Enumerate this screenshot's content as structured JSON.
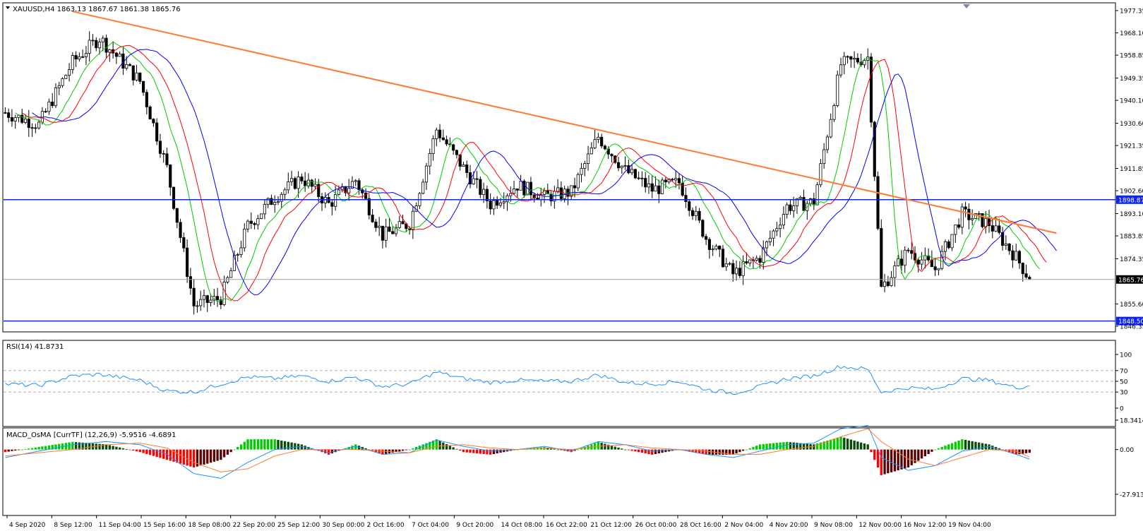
{
  "chart_data": [
    {
      "type": "candlestick",
      "title": "XAUUSD,H4  1863.13 1867.67 1861.38 1865.76",
      "ylim": [
        1846.35,
        1977.35
      ],
      "y_ticks": [
        "1977.35",
        "1968.10",
        "1958.85",
        "1949.35",
        "1940.10",
        "1930.60",
        "1921.35",
        "1911.85",
        "1902.60",
        "1893.10",
        "1883.85",
        "1874.35",
        "1855.60",
        "1846.35"
      ],
      "horizontal_lines": [
        {
          "value": 1898.87,
          "label": "1898.87",
          "color": "#0a23ff"
        },
        {
          "value": 1848.5,
          "label": "1848.50",
          "color": "#0a23ff"
        }
      ],
      "current_price": {
        "value": 1865.76,
        "label": "1865.76"
      },
      "trendline": {
        "color": "#ff7a30",
        "start": {
          "x": "9 Sep 2020",
          "y": 1977.0
        },
        "end": {
          "x": "20 Nov 2020",
          "y": 1885.0
        }
      },
      "moving_average_colors": {
        "fast": "#00cc00",
        "medium": "#ff0000",
        "slow": "#0000ff"
      },
      "close_path": [
        [
          0,
          1935
        ],
        [
          10,
          1930
        ],
        [
          20,
          1956
        ],
        [
          28,
          1966
        ],
        [
          40,
          1948
        ],
        [
          48,
          1912
        ],
        [
          56,
          1855
        ],
        [
          64,
          1858
        ],
        [
          72,
          1888
        ],
        [
          80,
          1900
        ],
        [
          88,
          1908
        ],
        [
          96,
          1897
        ],
        [
          104,
          1907
        ],
        [
          112,
          1884
        ],
        [
          120,
          1889
        ],
        [
          128,
          1928
        ],
        [
          136,
          1912
        ],
        [
          144,
          1897
        ],
        [
          152,
          1905
        ],
        [
          160,
          1900
        ],
        [
          168,
          1902
        ],
        [
          176,
          1925
        ],
        [
          184,
          1911
        ],
        [
          192,
          1903
        ],
        [
          200,
          1906
        ],
        [
          208,
          1883
        ],
        [
          216,
          1868
        ],
        [
          224,
          1875
        ],
        [
          232,
          1896
        ],
        [
          240,
          1898
        ],
        [
          248,
          1955
        ],
        [
          256,
          1958
        ],
        [
          260,
          1862
        ],
        [
          268,
          1878
        ],
        [
          276,
          1870
        ],
        [
          284,
          1893
        ],
        [
          292,
          1889
        ],
        [
          300,
          1875
        ],
        [
          304,
          1866
        ]
      ],
      "x_labels": [
        "4 Sep 2020",
        "8 Sep 12:00",
        "11 Sep 04:00",
        "15 Sep 16:00",
        "18 Sep 08:00",
        "22 Sep 20:00",
        "25 Sep 12:00",
        "30 Sep 00:00",
        "2 Oct 16:00",
        "7 Oct 04:00",
        "9 Oct 20:00",
        "14 Oct 08:00",
        "16 Oct 22:00",
        "21 Oct 12:00",
        "26 Oct 00:00",
        "28 Oct 16:00",
        "2 Nov 04:00",
        "4 Nov 20:00",
        "9 Nov 08:00",
        "12 Nov 00:00",
        "16 Nov 12:00",
        "19 Nov 04:00"
      ]
    },
    {
      "type": "line",
      "title": "RSI(14) 41.8731",
      "ylim": [
        0,
        100
      ],
      "y_ticks": [
        "100",
        "70",
        "50",
        "30",
        "0"
      ],
      "levels": [
        70,
        50,
        30
      ],
      "color": "#1e90ff",
      "path": [
        [
          0,
          45
        ],
        [
          10,
          42
        ],
        [
          20,
          60
        ],
        [
          28,
          63
        ],
        [
          40,
          52
        ],
        [
          48,
          32
        ],
        [
          56,
          30
        ],
        [
          64,
          45
        ],
        [
          72,
          58
        ],
        [
          80,
          55
        ],
        [
          88,
          60
        ],
        [
          96,
          50
        ],
        [
          104,
          58
        ],
        [
          112,
          40
        ],
        [
          120,
          45
        ],
        [
          128,
          67
        ],
        [
          136,
          55
        ],
        [
          144,
          48
        ],
        [
          152,
          52
        ],
        [
          160,
          50
        ],
        [
          168,
          50
        ],
        [
          176,
          62
        ],
        [
          184,
          48
        ],
        [
          192,
          45
        ],
        [
          200,
          50
        ],
        [
          208,
          35
        ],
        [
          216,
          28
        ],
        [
          224,
          40
        ],
        [
          232,
          55
        ],
        [
          240,
          60
        ],
        [
          248,
          78
        ],
        [
          256,
          72
        ],
        [
          260,
          30
        ],
        [
          268,
          38
        ],
        [
          276,
          35
        ],
        [
          284,
          55
        ],
        [
          292,
          52
        ],
        [
          300,
          38
        ],
        [
          304,
          41.87
        ]
      ]
    },
    {
      "type": "bar",
      "title": "MACD_OsMA [CurrTF] (12,26,9) -5.9516 -4.6891",
      "ylim": [
        -27.9131,
        18.3414
      ],
      "y_ticks": [
        "18.3414",
        "0.00",
        "-27.9131"
      ],
      "osma_up_color": "#00cc00",
      "osma_down_color": "#ff0000",
      "macd_color": "#1e90ff",
      "signal_color": "#ff7a30",
      "macd_path": [
        [
          0,
          -5
        ],
        [
          20,
          3
        ],
        [
          30,
          5
        ],
        [
          40,
          3
        ],
        [
          48,
          -3
        ],
        [
          56,
          -15
        ],
        [
          64,
          -18
        ],
        [
          72,
          -8
        ],
        [
          80,
          0
        ],
        [
          88,
          2
        ],
        [
          96,
          -2
        ],
        [
          104,
          2
        ],
        [
          112,
          -3
        ],
        [
          120,
          -2
        ],
        [
          128,
          6
        ],
        [
          136,
          2
        ],
        [
          144,
          -1
        ],
        [
          152,
          0
        ],
        [
          160,
          2
        ],
        [
          168,
          -1
        ],
        [
          176,
          5
        ],
        [
          184,
          3
        ],
        [
          192,
          -1
        ],
        [
          200,
          0
        ],
        [
          208,
          -3
        ],
        [
          216,
          -5
        ],
        [
          224,
          -1
        ],
        [
          232,
          3
        ],
        [
          240,
          4
        ],
        [
          248,
          13
        ],
        [
          256,
          15
        ],
        [
          260,
          -5
        ],
        [
          268,
          -13
        ],
        [
          276,
          -10
        ],
        [
          284,
          -1
        ],
        [
          292,
          2
        ],
        [
          300,
          -3
        ],
        [
          304,
          -5.95
        ]
      ],
      "signal_path": [
        [
          0,
          -4
        ],
        [
          20,
          0
        ],
        [
          30,
          3
        ],
        [
          40,
          4
        ],
        [
          48,
          1
        ],
        [
          56,
          -8
        ],
        [
          64,
          -14
        ],
        [
          72,
          -12
        ],
        [
          80,
          -4
        ],
        [
          88,
          0
        ],
        [
          96,
          0
        ],
        [
          104,
          0
        ],
        [
          112,
          -1
        ],
        [
          120,
          -2
        ],
        [
          128,
          2
        ],
        [
          136,
          3
        ],
        [
          144,
          1
        ],
        [
          152,
          0
        ],
        [
          160,
          1
        ],
        [
          168,
          0
        ],
        [
          176,
          2
        ],
        [
          184,
          3
        ],
        [
          192,
          1
        ],
        [
          200,
          0
        ],
        [
          208,
          -1
        ],
        [
          216,
          -3
        ],
        [
          224,
          -3
        ],
        [
          232,
          0
        ],
        [
          240,
          2
        ],
        [
          248,
          8
        ],
        [
          256,
          13
        ],
        [
          260,
          5
        ],
        [
          268,
          -6
        ],
        [
          276,
          -10
        ],
        [
          284,
          -5
        ],
        [
          292,
          0
        ],
        [
          300,
          -1
        ],
        [
          304,
          -4.69
        ]
      ]
    }
  ]
}
